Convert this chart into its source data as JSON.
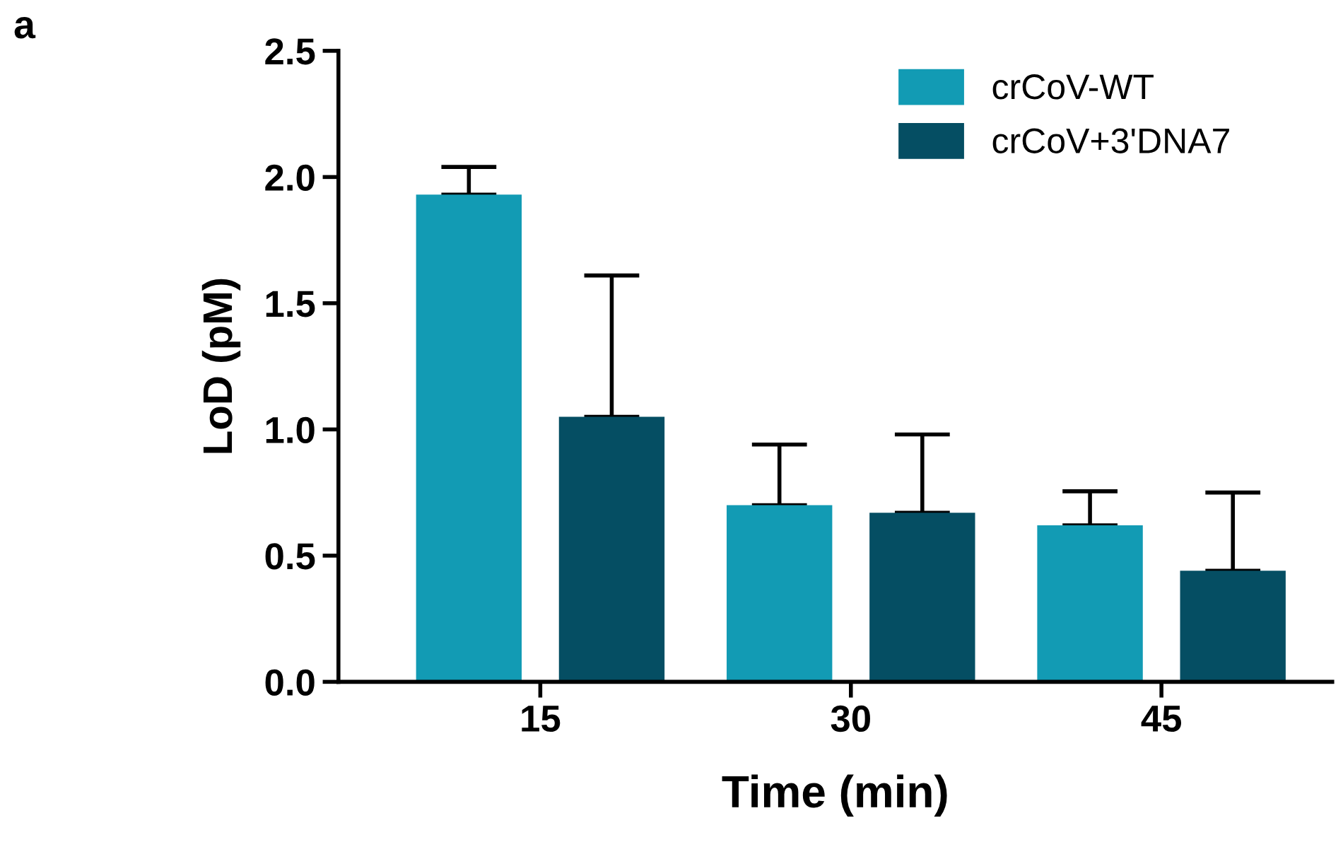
{
  "chart_data": {
    "type": "bar",
    "xlabel": "Time (min)",
    "ylabel": "LoD (pM)",
    "categories": [
      "15",
      "30",
      "45"
    ],
    "series": [
      {
        "name": "crCoV-WT",
        "color": "#129bb4",
        "values": [
          1.93,
          0.7,
          0.62
        ],
        "errors": [
          [
            1.93,
            2.04
          ],
          [
            0.7,
            0.94
          ],
          [
            0.62,
            0.755
          ]
        ]
      },
      {
        "name": "crCoV+3'DNA7",
        "color": "#054e63",
        "values": [
          1.05,
          0.67,
          0.44
        ],
        "errors": [
          [
            1.05,
            1.61
          ],
          [
            0.67,
            0.98
          ],
          [
            0.44,
            0.75
          ]
        ]
      }
    ],
    "ylim": [
      0,
      2.5
    ],
    "yticks": [
      {
        "value": 0,
        "label": "0.0"
      },
      {
        "value": 0.5,
        "label": "0.5"
      },
      {
        "value": 1,
        "label": "1.0"
      },
      {
        "value": 1.5,
        "label": "1.5"
      },
      {
        "value": 2,
        "label": "2.0"
      },
      {
        "value": 2.5,
        "label": "2.5"
      }
    ],
    "grid": false,
    "legend": "top right",
    "annotations": [
      "a"
    ]
  }
}
